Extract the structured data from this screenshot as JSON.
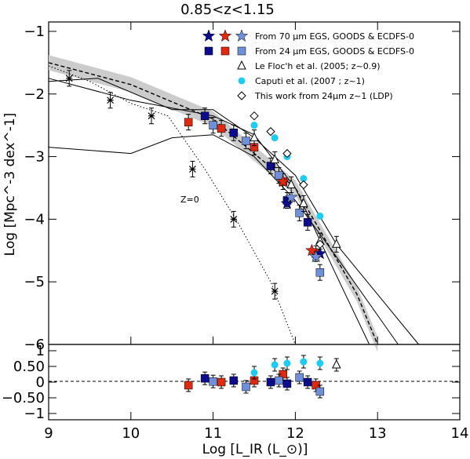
{
  "chart_data": {
    "type": "scatter",
    "title": "0.85<z<1.15",
    "xlabel": "Log [L_IR (L_⊙)]",
    "ylabel": "Log [Mpc^-3 dex^-1]",
    "xlim": [
      9,
      14
    ],
    "ylim": [
      -6,
      -0.85
    ],
    "ylim_residual": [
      -1.2,
      1.2
    ],
    "x_ticks": [
      9,
      10,
      11,
      12,
      13,
      14
    ],
    "y_ticks": [
      -1,
      -2,
      -3,
      -4,
      -5,
      -6
    ],
    "y_ticks_residual": [
      -1,
      -0.5,
      0,
      0.5,
      1
    ],
    "y_tick_labels_residual": [
      "−1",
      "−0.50",
      "0",
      "0.50",
      "1"
    ],
    "legend": [
      {
        "label": "From 70 μm EGS, GOODS & ECDFS-0",
        "marker": "star-trio"
      },
      {
        "label": "From 24 μm EGS, GOODS & ECDFS-0",
        "marker": "square-trio"
      },
      {
        "label": "Le Floc'h et al. (2005; z~0.9)",
        "marker": "triangle"
      },
      {
        "label": "Caputi et al. (2007 ; z~1)",
        "marker": "circle"
      },
      {
        "label": "This work from 24μm z~1 (LDP)",
        "marker": "diamond"
      }
    ],
    "annotations": [
      "Z=0"
    ],
    "colors": {
      "dark_blue": "#0c0c8c",
      "red": "#dd2a10",
      "light_blue": "#6f8fd8",
      "cyan": "#1ecbf2",
      "grey_band": "#cccccc"
    },
    "series": [
      {
        "name": "24um dark blue",
        "points": [
          [
            10.9,
            -2.35
          ],
          [
            11.25,
            -2.62
          ],
          [
            11.7,
            -3.15
          ],
          [
            11.9,
            -3.7
          ],
          [
            12.15,
            -4.05
          ]
        ]
      },
      {
        "name": "24um red",
        "points": [
          [
            10.7,
            -2.45
          ],
          [
            11.1,
            -2.55
          ],
          [
            11.5,
            -2.85
          ],
          [
            11.85,
            -3.4
          ],
          [
            12.25,
            -4.55
          ]
        ]
      },
      {
        "name": "24um light blue",
        "points": [
          [
            11.0,
            -2.5
          ],
          [
            11.4,
            -2.75
          ],
          [
            11.8,
            -3.3
          ],
          [
            12.05,
            -3.9
          ],
          [
            12.3,
            -4.85
          ]
        ]
      },
      {
        "name": "70um stars dark",
        "points": [
          [
            11.9,
            -3.75
          ],
          [
            12.3,
            -4.55
          ]
        ]
      },
      {
        "name": "70um stars red",
        "points": [
          [
            11.85,
            -3.4
          ],
          [
            12.2,
            -4.5
          ]
        ]
      },
      {
        "name": "70um stars light",
        "points": [
          [
            11.95,
            -3.65
          ],
          [
            12.25,
            -4.6
          ]
        ]
      },
      {
        "name": "Le Floc'h",
        "points": [
          [
            11.5,
            -2.7
          ],
          [
            11.75,
            -3.05
          ],
          [
            11.95,
            -3.45
          ],
          [
            12.1,
            -3.75
          ],
          [
            12.3,
            -4.35
          ],
          [
            12.5,
            -4.4
          ]
        ]
      },
      {
        "name": "Caputi",
        "points": [
          [
            11.5,
            -2.5
          ],
          [
            11.75,
            -2.7
          ],
          [
            11.9,
            -3.0
          ],
          [
            12.1,
            -3.35
          ],
          [
            12.3,
            -3.95
          ]
        ]
      },
      {
        "name": "LDP",
        "points": [
          [
            11.5,
            -2.35
          ],
          [
            11.7,
            -2.6
          ],
          [
            11.9,
            -2.95
          ],
          [
            12.1,
            -3.45
          ],
          [
            12.3,
            -4.4
          ]
        ]
      },
      {
        "name": "Z=0 local",
        "points": [
          [
            9.25,
            -1.75
          ],
          [
            9.75,
            -2.1
          ],
          [
            10.25,
            -2.35
          ],
          [
            10.75,
            -3.2
          ],
          [
            11.25,
            -4.0
          ],
          [
            11.75,
            -5.15
          ]
        ]
      }
    ],
    "model_curves": [
      {
        "name": "dashed fit",
        "points": [
          [
            9,
            -1.5
          ],
          [
            10,
            -1.85
          ],
          [
            11,
            -2.4
          ],
          [
            12,
            -3.5
          ],
          [
            12.75,
            -5.2
          ],
          [
            13.0,
            -6.0
          ]
        ]
      },
      {
        "name": "solid curve A",
        "points": [
          [
            9,
            -2.85
          ],
          [
            10,
            -2.95
          ],
          [
            10.5,
            -2.7
          ],
          [
            11.0,
            -2.65
          ],
          [
            11.5,
            -3.0
          ],
          [
            12.0,
            -3.7
          ],
          [
            12.5,
            -4.6
          ],
          [
            13.25,
            -6.0
          ]
        ]
      },
      {
        "name": "solid curve B",
        "points": [
          [
            9,
            -1.75
          ],
          [
            10.0,
            -2.1
          ],
          [
            11.0,
            -2.35
          ],
          [
            11.5,
            -2.65
          ],
          [
            12.0,
            -3.5
          ],
          [
            12.5,
            -4.9
          ],
          [
            12.9,
            -6.0
          ]
        ]
      },
      {
        "name": "solid curve C",
        "points": [
          [
            9,
            -1.8
          ],
          [
            9.6,
            -1.75
          ],
          [
            10.5,
            -2.25
          ],
          [
            11.0,
            -2.25
          ],
          [
            11.5,
            -2.7
          ],
          [
            12.0,
            -3.3
          ],
          [
            12.5,
            -4.4
          ],
          [
            13.5,
            -6.0
          ]
        ]
      },
      {
        "name": "Z=0 dotted",
        "points": [
          [
            9,
            -1.55
          ],
          [
            9.5,
            -1.8
          ],
          [
            10.0,
            -2.15
          ],
          [
            10.45,
            -2.35
          ],
          [
            10.9,
            -3.2
          ],
          [
            11.3,
            -4.05
          ],
          [
            11.7,
            -5.0
          ],
          [
            12.0,
            -6.0
          ]
        ]
      }
    ],
    "residuals": [
      {
        "name": "24um dark blue",
        "points": [
          [
            10.9,
            0.12
          ],
          [
            11.25,
            0.05
          ],
          [
            11.7,
            0.0
          ],
          [
            11.9,
            -0.05
          ],
          [
            12.15,
            0.0
          ]
        ]
      },
      {
        "name": "24um red",
        "points": [
          [
            10.7,
            -0.1
          ],
          [
            11.1,
            0.0
          ],
          [
            11.5,
            0.05
          ],
          [
            11.85,
            0.25
          ],
          [
            12.25,
            -0.1
          ]
        ]
      },
      {
        "name": "24um light blue",
        "points": [
          [
            11.0,
            0.02
          ],
          [
            11.4,
            -0.15
          ],
          [
            11.8,
            0.05
          ],
          [
            12.05,
            0.15
          ],
          [
            12.3,
            -0.3
          ]
        ]
      },
      {
        "name": "Caputi",
        "points": [
          [
            11.5,
            0.3
          ],
          [
            11.75,
            0.55
          ],
          [
            11.9,
            0.6
          ],
          [
            12.1,
            0.65
          ],
          [
            12.3,
            0.6
          ]
        ]
      },
      {
        "name": "Le Floc'h",
        "points": [
          [
            12.5,
            0.55
          ]
        ]
      }
    ]
  }
}
